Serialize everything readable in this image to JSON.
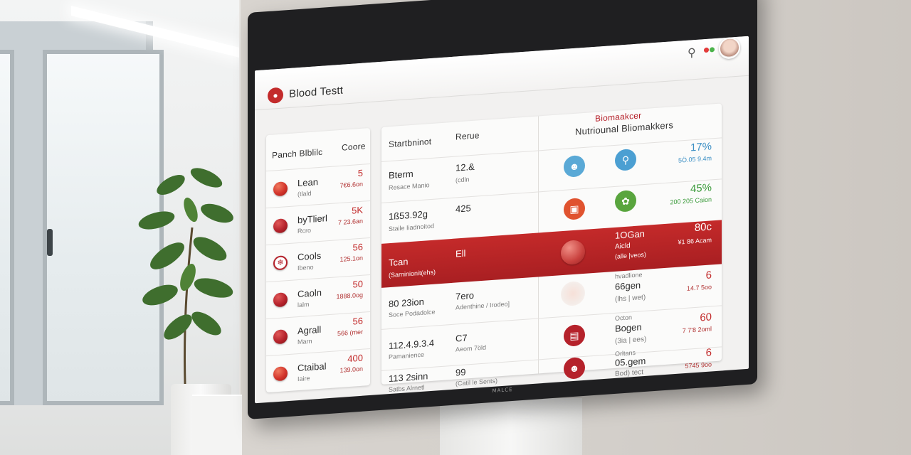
{
  "app": {
    "title": "Blood Testt"
  },
  "left_panel": {
    "headers": [
      "Panch Blblilc",
      "Coore"
    ],
    "items": [
      {
        "label": "Lean",
        "sub": "(tlald",
        "value": "5",
        "value_sub": "7€6.6on"
      },
      {
        "label": "byTlierl",
        "sub": "Rcro",
        "value": "5K",
        "value_sub": "7 23.6an"
      },
      {
        "label": "Cools",
        "sub": "Ibeno",
        "value": "56",
        "value_sub": "125.1on"
      },
      {
        "label": "Caoln",
        "sub": "lalm",
        "value": "50",
        "value_sub": "1888.0og"
      },
      {
        "label": "Agrall",
        "sub": "Marn",
        "value": "56",
        "value_sub": "566 (mer"
      },
      {
        "label": "Ctaibal",
        "sub": "Iaire",
        "value": "400",
        "value_sub": "139.0on"
      }
    ]
  },
  "main_panel": {
    "headers": [
      "Startbninot",
      "Rerue"
    ],
    "right_headers": {
      "title": "Biomaakcer",
      "subtitle": "Nutriounal Bliomakkers"
    },
    "rows": [
      {
        "name": "Bterm",
        "name_sub": "Resace Manio",
        "range": "12.&",
        "range_sub": "(cdln",
        "right_label": "",
        "right_label_sub": "",
        "right_value": "17%",
        "right_value_sub": "5Ö.05 9.4m"
      },
      {
        "name": "1ß53.92g",
        "name_sub": "Staile Iiadnoitod",
        "range": "425",
        "range_sub": "",
        "right_label": "",
        "right_label_sub": "",
        "right_value": "45%",
        "right_value_sub": "200 205 Caion"
      },
      {
        "name": "Tcan",
        "name_sub": "(Sarninionit(ehs)",
        "range": "Ell",
        "range_sub": "",
        "right_label": "1OGan",
        "right_label_sub": "Aicld",
        "right_label_sub2": "(alle |veos)",
        "right_value": "80c",
        "right_value_sub": "¥1 86 Acam"
      },
      {
        "name": "80 23ion",
        "name_sub": "Soce Podadolce",
        "range": "7ero",
        "range_sub": "Adenthine / Irodeo]",
        "right_label": "66gen",
        "right_label_sub": "hvadlione",
        "right_label_sub2": "(lhs | wet)",
        "right_value": "6",
        "right_value_sub": "14.7 5oo"
      },
      {
        "name": "112.4.9.3.4",
        "name_sub": "Pamanience",
        "range": "C7",
        "range_sub": "Aeom 7öld",
        "right_label": "Bogen",
        "right_label_sub": "Octon",
        "right_label_sub2": "(3ia | ees)",
        "right_value": "60",
        "right_value_sub": "7 7'8 2oml"
      },
      {
        "name": "113 2sinn",
        "name_sub": "Satbs Alrnetl",
        "range": "99",
        "range_sub": "(Catil le Sents)",
        "right_label": "05.gem",
        "right_label_sub": "Orltans",
        "right_label_sub2": "Bod) tect",
        "right_value": "6",
        "right_value_sub": "5745 9oo"
      }
    ]
  },
  "colors": {
    "accent": "#b5222b",
    "percent_blue": "#3b8fc4",
    "percent_green": "#3a9a3a"
  },
  "icons": [
    "blood-drop-icon",
    "user-icon",
    "avatar",
    "team-icon",
    "search-user-icon",
    "clipboard-icon",
    "leaf-icon",
    "report-icon",
    "person-icon"
  ],
  "monitor": {
    "brand": "MALCE"
  }
}
